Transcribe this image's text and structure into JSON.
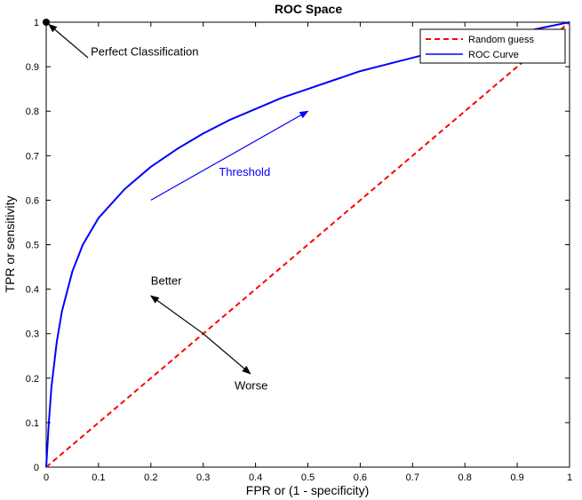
{
  "chart_data": {
    "type": "line",
    "title": "ROC Space",
    "xlabel": "FPR or (1 - specificity)",
    "ylabel": "TPR or sensitivity",
    "xlim": [
      0,
      1
    ],
    "ylim": [
      0,
      1
    ],
    "xticks": [
      "0",
      "0.1",
      "0.2",
      "0.3",
      "0.4",
      "0.5",
      "0.6",
      "0.7",
      "0.8",
      "0.9",
      "1"
    ],
    "yticks": [
      "0",
      "0.1",
      "0.2",
      "0.3",
      "0.4",
      "0.5",
      "0.6",
      "0.7",
      "0.8",
      "0.9",
      "1"
    ],
    "grid": false,
    "legend_position": "top-right",
    "series": [
      {
        "name": "Random guess",
        "style": "dashed",
        "color": "#ff0000",
        "x": [
          0,
          1
        ],
        "y": [
          0,
          1
        ]
      },
      {
        "name": "ROC Curve",
        "style": "solid",
        "color": "#0000ff",
        "x": [
          0,
          0.005,
          0.01,
          0.02,
          0.03,
          0.05,
          0.07,
          0.1,
          0.15,
          0.2,
          0.25,
          0.3,
          0.35,
          0.4,
          0.45,
          0.5,
          0.55,
          0.6,
          0.65,
          0.7,
          0.75,
          0.8,
          0.85,
          0.9,
          0.95,
          1.0
        ],
        "y": [
          0,
          0.1,
          0.18,
          0.28,
          0.35,
          0.44,
          0.5,
          0.56,
          0.625,
          0.675,
          0.715,
          0.75,
          0.78,
          0.805,
          0.83,
          0.85,
          0.87,
          0.89,
          0.905,
          0.92,
          0.935,
          0.95,
          0.962,
          0.975,
          0.988,
          1.0
        ]
      }
    ],
    "points": [
      {
        "label": "Perfect Classification",
        "x": 0,
        "y": 1,
        "color": "#000000"
      }
    ],
    "annotations": [
      {
        "text": "Perfect Classification",
        "x": 0.085,
        "y": 0.925,
        "arrow_from": [
          0.08,
          0.92
        ],
        "arrow_to": [
          0.005,
          0.995
        ],
        "color": "#000000"
      },
      {
        "text": "Threshold",
        "x": 0.33,
        "y": 0.655,
        "arrow_from": [
          0.2,
          0.6
        ],
        "arrow_to": [
          0.5,
          0.8
        ],
        "color": "#0000ff"
      },
      {
        "text": "Better",
        "x": 0.2,
        "y": 0.41,
        "arrow_from": [
          0.3,
          0.3
        ],
        "arrow_to": [
          0.2,
          0.385
        ],
        "color": "#000000"
      },
      {
        "text": "Worse",
        "x": 0.36,
        "y": 0.175,
        "arrow_from": [
          0.3,
          0.3
        ],
        "arrow_to": [
          0.39,
          0.21
        ],
        "color": "#000000"
      }
    ]
  }
}
